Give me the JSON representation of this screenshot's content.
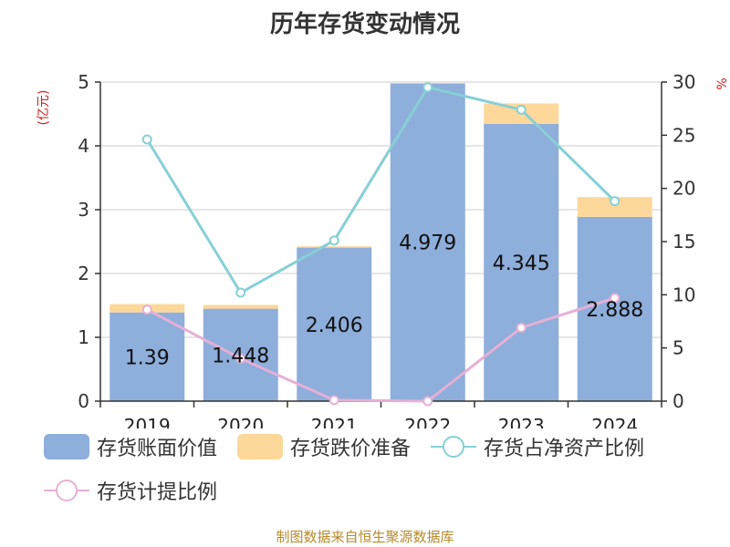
{
  "chart_data": {
    "type": "bar",
    "title": "历年存货变动情况",
    "categories": [
      "2019",
      "2020",
      "2021",
      "2022",
      "2023",
      "2024"
    ],
    "left_axis": {
      "unit": "(亿元)",
      "ylim": [
        0,
        5
      ],
      "ticks": [
        "0",
        "1",
        "2",
        "3",
        "4",
        "5"
      ]
    },
    "right_axis": {
      "unit": "%",
      "ylim": [
        0,
        30
      ],
      "ticks": [
        "0",
        "5",
        "10",
        "15",
        "20",
        "25",
        "30"
      ]
    },
    "series": [
      {
        "name": "存货账面价值",
        "type": "bar",
        "axis": "left",
        "color": "#8eaedb",
        "values": [
          1.39,
          1.448,
          2.406,
          4.979,
          4.345,
          2.888
        ],
        "labels": [
          "1.39",
          "1.448",
          "2.406",
          "4.979",
          "4.345",
          "2.888"
        ]
      },
      {
        "name": "存货跌价准备",
        "type": "bar",
        "axis": "left",
        "stacked": true,
        "color": "#fdd89a",
        "values": [
          0.13,
          0.06,
          0.02,
          0.0,
          0.32,
          0.31
        ]
      },
      {
        "name": "存货占净资产比例",
        "type": "line",
        "axis": "right",
        "color": "#86d0d6",
        "values": [
          24.6,
          10.2,
          15.1,
          29.5,
          27.4,
          18.8
        ]
      },
      {
        "name": "存货计提比例",
        "type": "line",
        "axis": "right",
        "color": "#e6b0d6",
        "values": [
          8.6,
          4.0,
          0.1,
          0.0,
          6.9,
          9.7
        ]
      }
    ],
    "grid": true,
    "legend": "bottom"
  },
  "source_note": "制图数据来自恒生聚源数据库"
}
